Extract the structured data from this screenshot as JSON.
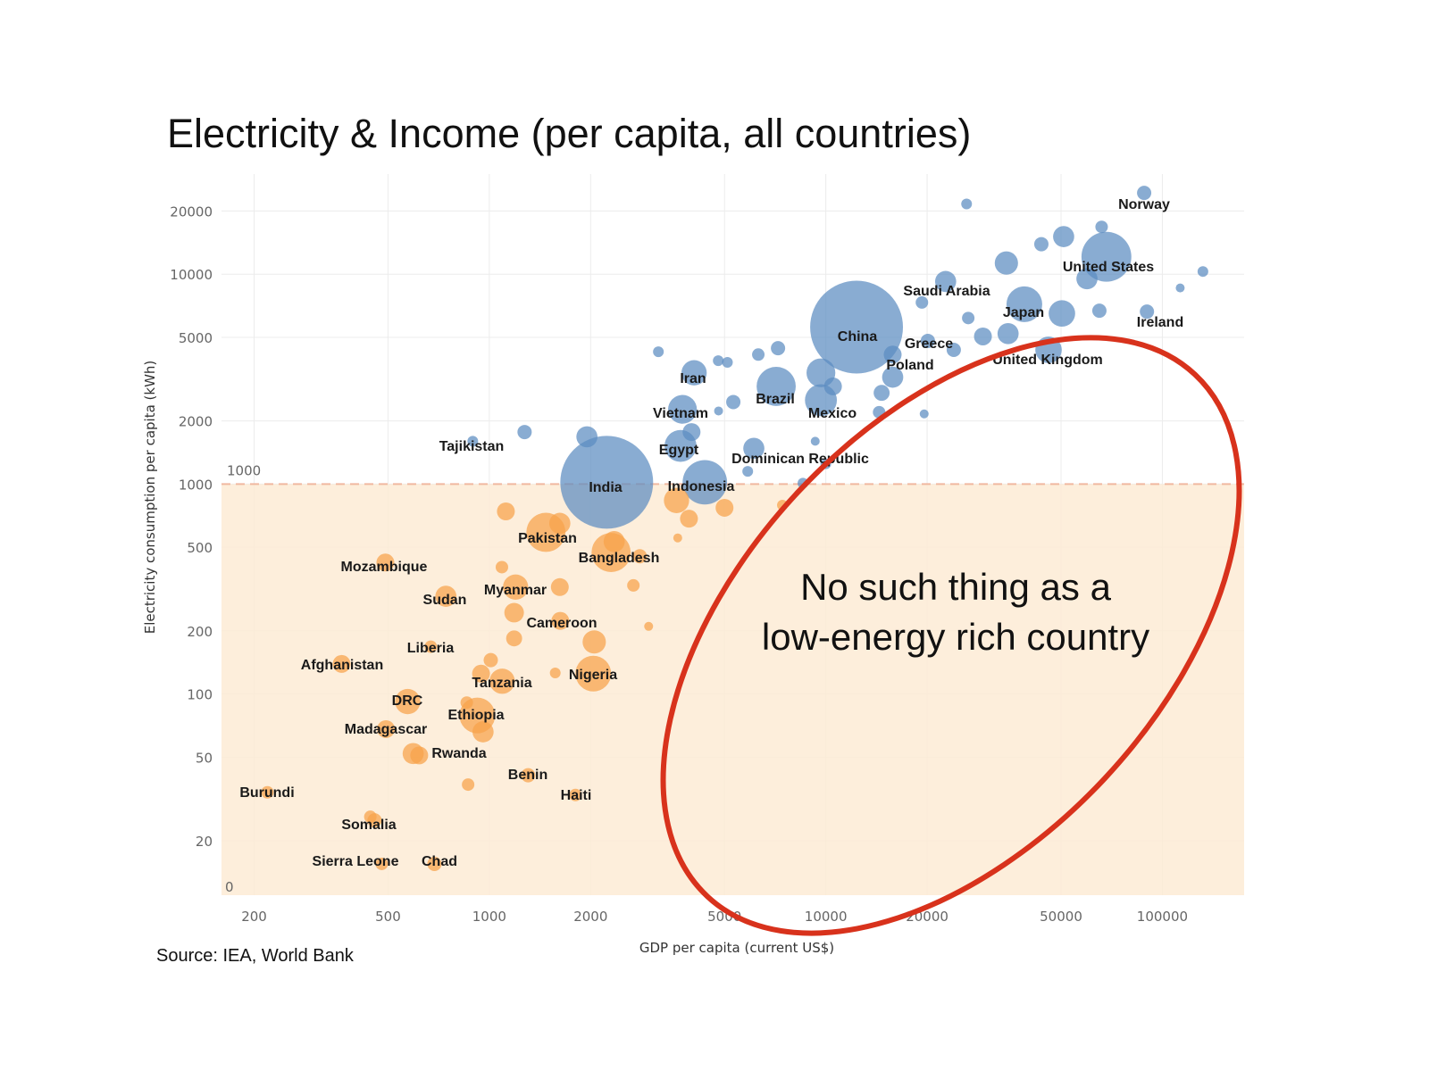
{
  "title": "Electricity & Income (per capita, all countries)",
  "source": "Source: IEA, World Bank",
  "chart_data": {
    "type": "scatter",
    "subtype": "bubble",
    "title": "Electricity & Income (per capita, all countries)",
    "xlabel": "GDP per capita (current US$)",
    "ylabel": "Electricity consumption per capita (kWh)",
    "x_scale": "log",
    "y_scale": "log",
    "xlim": [
      160,
      175000
    ],
    "ylim": [
      11,
      30000
    ],
    "x_ticks": [
      200,
      500,
      1000,
      2000,
      5000,
      10000,
      20000,
      50000,
      100000
    ],
    "y_ticks": [
      20,
      50,
      100,
      200,
      500,
      1000,
      2000,
      5000,
      10000,
      20000
    ],
    "y_bottom_label": "0",
    "grid": true,
    "reference_line": {
      "y": 1000,
      "label": "1000",
      "style": "dashed",
      "shade_below": true
    },
    "annotation": {
      "lines": [
        "No such thing as a",
        "low-energy rich country"
      ],
      "shape": "red ellipse",
      "region": "high GDP, low electricity"
    },
    "colors": {
      "above_threshold": "#5b8cc0",
      "below_threshold": "#f6a24a",
      "shade": "#fdebd5",
      "ellipse": "#d8321c",
      "reference_line": "#f0b8a0"
    },
    "size_note": "relative bubble area",
    "points": [
      {
        "label": "India",
        "x": 2233,
        "y": 1020,
        "size": 270
      },
      {
        "label": "China",
        "x": 12340,
        "y": 5595,
        "size": 270
      },
      {
        "label": "United States",
        "x": 68200,
        "y": 12100,
        "size": 78
      },
      {
        "label": "Norway",
        "x": 88300,
        "y": 24400,
        "size": 6.4
      },
      {
        "label": "Ireland",
        "x": 90000,
        "y": 6630,
        "size": 6.4
      },
      {
        "label": "Japan",
        "x": 38900,
        "y": 7190,
        "size": 40
      },
      {
        "label": "United Kingdom",
        "x": 45900,
        "y": 4360,
        "size": 22
      },
      {
        "label": "Saudi Arabia",
        "x": 22700,
        "y": 9230,
        "size": 14
      },
      {
        "label": "Greece",
        "x": 20100,
        "y": 4810,
        "size": 6.4
      },
      {
        "label": "Poland",
        "x": 15800,
        "y": 4140,
        "size": 10
      },
      {
        "label": "Brazil",
        "x": 7120,
        "y": 2920,
        "size": 48
      },
      {
        "label": "Mexico",
        "x": 9670,
        "y": 2510,
        "size": 32
      },
      {
        "label": "Iran",
        "x": 4060,
        "y": 3390,
        "size": 20
      },
      {
        "label": "Vietnam",
        "x": 3750,
        "y": 2270,
        "size": 26
      },
      {
        "label": "Egypt",
        "x": 3700,
        "y": 1520,
        "size": 32
      },
      {
        "label": "Dominican Republic",
        "x": 6110,
        "y": 1480,
        "size": 14
      },
      {
        "label": "Indonesia",
        "x": 4370,
        "y": 1020,
        "size": 62
      },
      {
        "label": "Tajikistan",
        "x": 893,
        "y": 1600,
        "size": 3.6
      },
      {
        "label": "Pakistan",
        "x": 1473,
        "y": 589,
        "size": 48
      },
      {
        "label": "Bangladesh",
        "x": 2301,
        "y": 472,
        "size": 48
      },
      {
        "label": "Mozambique",
        "x": 491,
        "y": 423,
        "size": 10
      },
      {
        "label": "Myanmar",
        "x": 1197,
        "y": 323,
        "size": 20
      },
      {
        "label": "Sudan",
        "x": 743,
        "y": 292,
        "size": 14
      },
      {
        "label": "Cameroon",
        "x": 1625,
        "y": 223,
        "size": 10
      },
      {
        "label": "Liberia",
        "x": 670,
        "y": 168,
        "size": 4.9
      },
      {
        "label": "Afghanistan",
        "x": 364,
        "y": 139,
        "size": 10
      },
      {
        "label": "Nigeria",
        "x": 2037,
        "y": 125,
        "size": 40
      },
      {
        "label": "Tanzania",
        "x": 1092,
        "y": 115,
        "size": 20
      },
      {
        "label": "DRC",
        "x": 572,
        "y": 92,
        "size": 20
      },
      {
        "label": "Ethiopia",
        "x": 921,
        "y": 79,
        "size": 40
      },
      {
        "label": "Madagascar",
        "x": 493,
        "y": 68,
        "size": 10
      },
      {
        "label": "Rwanda",
        "x": 619,
        "y": 51,
        "size": 10
      },
      {
        "label": "Benin",
        "x": 1304,
        "y": 41,
        "size": 6.4
      },
      {
        "label": "Haiti",
        "x": 1803,
        "y": 33,
        "size": 4.9
      },
      {
        "label": "Burundi",
        "x": 219,
        "y": 34,
        "size": 4.9
      },
      {
        "label": "Somalia",
        "x": 456,
        "y": 25,
        "size": 6.4
      },
      {
        "label": "Sierra Leone",
        "x": 479,
        "y": 15.5,
        "size": 4.9
      },
      {
        "label": "Chad",
        "x": 687,
        "y": 15.5,
        "size": 6.4
      },
      {
        "x": 26200,
        "y": 21600,
        "size": 3.6
      },
      {
        "x": 50900,
        "y": 15100,
        "size": 14
      },
      {
        "x": 66000,
        "y": 16800,
        "size": 4.9
      },
      {
        "x": 43700,
        "y": 13900,
        "size": 6.4
      },
      {
        "x": 34400,
        "y": 11300,
        "size": 17
      },
      {
        "x": 59700,
        "y": 9510,
        "size": 14
      },
      {
        "x": 132000,
        "y": 10300,
        "size": 3.6
      },
      {
        "x": 113000,
        "y": 8600,
        "size": 2.5
      },
      {
        "x": 50300,
        "y": 6500,
        "size": 22
      },
      {
        "x": 65000,
        "y": 6700,
        "size": 6.4
      },
      {
        "x": 34800,
        "y": 5210,
        "size": 14
      },
      {
        "x": 29300,
        "y": 5050,
        "size": 10
      },
      {
        "x": 26500,
        "y": 6180,
        "size": 4.9
      },
      {
        "x": 19300,
        "y": 7330,
        "size": 4.9
      },
      {
        "x": 24000,
        "y": 4360,
        "size": 6.4
      },
      {
        "x": 14650,
        "y": 2720,
        "size": 8
      },
      {
        "x": 14400,
        "y": 2200,
        "size": 4.9
      },
      {
        "x": 19600,
        "y": 2160,
        "size": 2.5
      },
      {
        "x": 9670,
        "y": 3390,
        "size": 26
      },
      {
        "x": 10500,
        "y": 2920,
        "size": 10
      },
      {
        "x": 7210,
        "y": 4440,
        "size": 6.4
      },
      {
        "x": 6300,
        "y": 4140,
        "size": 4.9
      },
      {
        "x": 4790,
        "y": 3870,
        "size": 3.6
      },
      {
        "x": 5100,
        "y": 3800,
        "size": 3.6
      },
      {
        "x": 5310,
        "y": 2460,
        "size": 6.4
      },
      {
        "x": 3180,
        "y": 4270,
        "size": 3.6
      },
      {
        "x": 4800,
        "y": 2230,
        "size": 2.5
      },
      {
        "x": 1950,
        "y": 1680,
        "size": 14
      },
      {
        "x": 1273,
        "y": 1770,
        "size": 6.4
      },
      {
        "x": 8550,
        "y": 1010,
        "size": 3.6
      },
      {
        "x": 5860,
        "y": 1150,
        "size": 3.6
      },
      {
        "x": 9300,
        "y": 1600,
        "size": 2.5
      },
      {
        "x": 10000,
        "y": 1250,
        "size": 3.6
      },
      {
        "x": 3990,
        "y": 1770,
        "size": 10
      },
      {
        "x": 15800,
        "y": 3230,
        "size": 14
      },
      {
        "x": 1120,
        "y": 741,
        "size": 10
      },
      {
        "x": 1620,
        "y": 650,
        "size": 14
      },
      {
        "x": 2350,
        "y": 532,
        "size": 14
      },
      {
        "x": 2800,
        "y": 453,
        "size": 6.4
      },
      {
        "x": 2680,
        "y": 329,
        "size": 4.9
      },
      {
        "x": 3630,
        "y": 554,
        "size": 2.5
      },
      {
        "x": 3920,
        "y": 684,
        "size": 10
      },
      {
        "x": 3600,
        "y": 835,
        "size": 20
      },
      {
        "x": 5000,
        "y": 771,
        "size": 10
      },
      {
        "x": 7430,
        "y": 794,
        "size": 3.6
      },
      {
        "x": 2975,
        "y": 210,
        "size": 2.5
      },
      {
        "x": 1620,
        "y": 323,
        "size": 10
      },
      {
        "x": 1185,
        "y": 244,
        "size": 12
      },
      {
        "x": 1185,
        "y": 184,
        "size": 8
      },
      {
        "x": 2050,
        "y": 177,
        "size": 17
      },
      {
        "x": 1090,
        "y": 402,
        "size": 4.9
      },
      {
        "x": 1010,
        "y": 145,
        "size": 6.4
      },
      {
        "x": 945,
        "y": 125,
        "size": 10
      },
      {
        "x": 1570,
        "y": 126,
        "size": 3.6
      },
      {
        "x": 857,
        "y": 91,
        "size": 4.9
      },
      {
        "x": 958,
        "y": 66,
        "size": 14
      },
      {
        "x": 594,
        "y": 52,
        "size": 14
      },
      {
        "x": 865,
        "y": 37,
        "size": 4.9
      },
      {
        "x": 443,
        "y": 26,
        "size": 4.9
      }
    ]
  }
}
